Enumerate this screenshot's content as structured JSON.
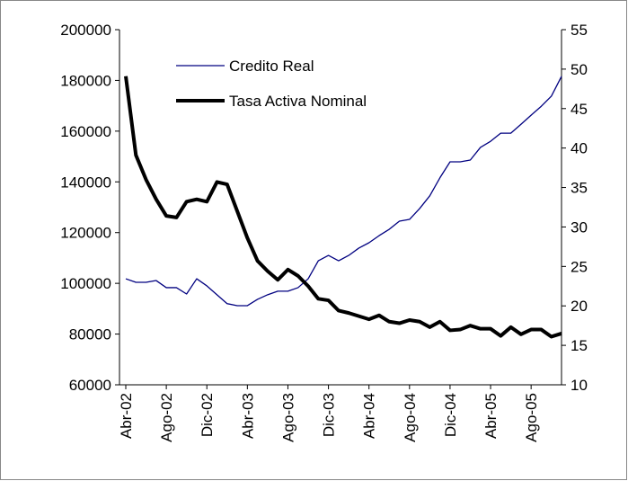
{
  "chart_data": {
    "type": "line",
    "categories": [
      "Abr-02",
      null,
      null,
      null,
      "Ago-02",
      null,
      null,
      null,
      "Dic-02",
      null,
      null,
      null,
      "Abr-03",
      null,
      null,
      null,
      "Ago-03",
      null,
      null,
      null,
      "Dic-03",
      null,
      null,
      null,
      "Abr-04",
      null,
      null,
      null,
      "Ago-04",
      null,
      null,
      null,
      "Dic-04",
      null,
      null,
      null,
      "Abr-05",
      null,
      null,
      null,
      "Ago-05",
      null,
      null,
      null
    ],
    "series": [
      {
        "name": "Credito Real",
        "color": "#000080",
        "values": [
          101800,
          100400,
          100400,
          101100,
          98300,
          98300,
          95800,
          101800,
          99000,
          95500,
          92000,
          91200,
          91200,
          93700,
          95500,
          96900,
          96900,
          98300,
          101800,
          108900,
          111000,
          108900,
          111000,
          113900,
          116000,
          118800,
          121300,
          124500,
          125200,
          129500,
          134500,
          141600,
          147900,
          147900,
          148600,
          153600,
          156000,
          159200,
          159200,
          162700,
          166300,
          169800,
          173800,
          181600
        ]
      },
      {
        "name": "Tasa Activa Nominal",
        "color": "#000000",
        "axis": "y2",
        "values": [
          49.1,
          39.1,
          36.0,
          33.5,
          31.4,
          31.2,
          33.2,
          33.5,
          33.2,
          35.7,
          35.4,
          32.0,
          28.6,
          25.7,
          24.4,
          23.3,
          24.6,
          23.8,
          22.5,
          20.9,
          20.7,
          19.4,
          19.1,
          18.7,
          18.3,
          18.8,
          18.0,
          17.8,
          18.2,
          18.0,
          17.3,
          18.0,
          16.9,
          17.0,
          17.5,
          17.1,
          17.1,
          16.2,
          17.3,
          16.4,
          17.0,
          17.0,
          16.1,
          16.5
        ]
      }
    ],
    "ylim": [
      60000,
      200000
    ],
    "yticks": [
      60000,
      80000,
      100000,
      120000,
      140000,
      160000,
      180000,
      200000
    ],
    "y2lim": [
      10,
      55
    ],
    "y2ticks": [
      10,
      15,
      20,
      25,
      30,
      35,
      40,
      45,
      50,
      55
    ],
    "legend": "upper-left",
    "grid": false
  }
}
